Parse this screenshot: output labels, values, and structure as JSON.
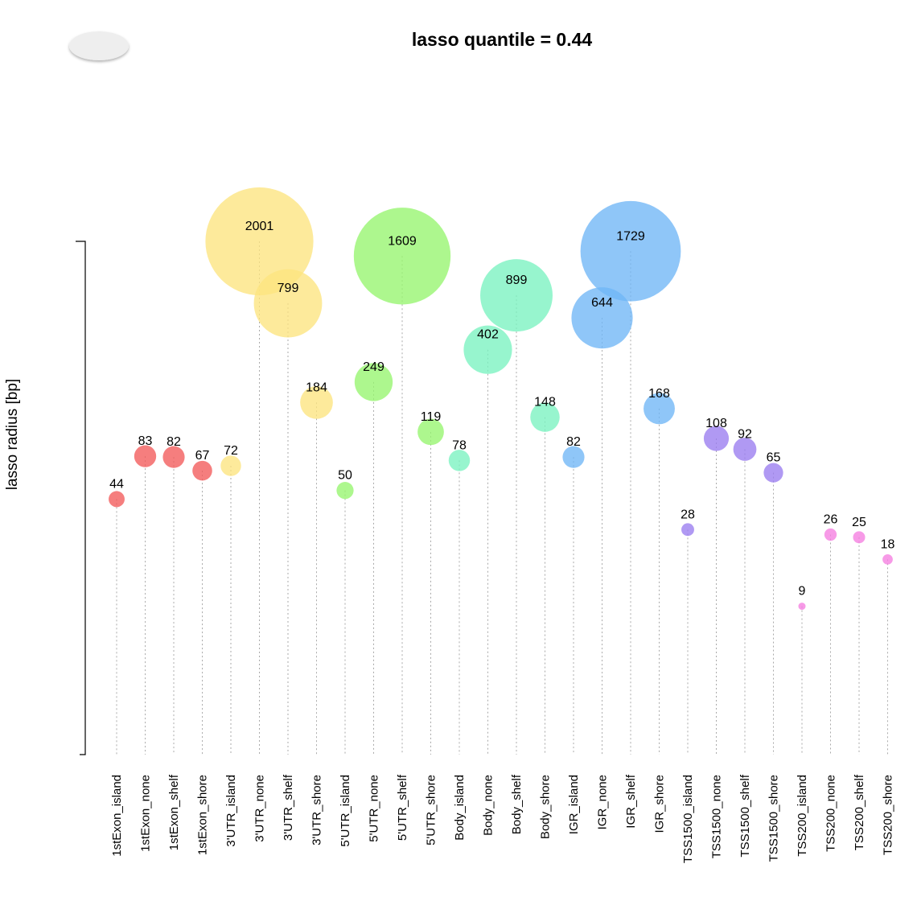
{
  "chart_data": {
    "type": "scatter",
    "title": "lasso quantile = 0.44",
    "ylabel": "lasso radius [bp]",
    "categories": [
      "1stExon_island",
      "1stExon_none",
      "1stExon_shelf",
      "1stExon_shore",
      "3'UTR_island",
      "3'UTR_none",
      "3'UTR_shelf",
      "3'UTR_shore",
      "5'UTR_island",
      "5'UTR_none",
      "5'UTR_shelf",
      "5'UTR_shore",
      "Body_island",
      "Body_none",
      "Body_shelf",
      "Body_shore",
      "IGR_island",
      "IGR_none",
      "IGR_shelf",
      "IGR_shore",
      "TSS1500_island",
      "TSS1500_none",
      "TSS1500_shelf",
      "TSS1500_shore",
      "TSS200_island",
      "TSS200_none",
      "TSS200_shelf",
      "TSS200_shore"
    ],
    "values": [
      44,
      83,
      82,
      67,
      72,
      2001,
      799,
      184,
      50,
      249,
      1609,
      119,
      78,
      402,
      899,
      148,
      82,
      644,
      1729,
      168,
      28,
      108,
      92,
      65,
      9,
      26,
      25,
      18
    ],
    "groups": [
      "1stExon",
      "1stExon",
      "1stExon",
      "1stExon",
      "3'UTR",
      "3'UTR",
      "3'UTR",
      "3'UTR",
      "5'UTR",
      "5'UTR",
      "5'UTR",
      "5'UTR",
      "Body",
      "Body",
      "Body",
      "Body",
      "IGR",
      "IGR",
      "IGR",
      "IGR",
      "TSS1500",
      "TSS1500",
      "TSS1500",
      "TSS1500",
      "TSS200",
      "TSS200",
      "TSS200",
      "TSS200"
    ],
    "group_colors": {
      "1stExon": "#f25a5a",
      "3'UTR": "#fde47f",
      "5'UTR": "#96f56e",
      "Body": "#7af2c0",
      "IGR": "#6fb6f6",
      "TSS1500": "#9a7cf0",
      "TSS200": "#f57ee0"
    },
    "marker_size_encodes": "value",
    "y_scale": "log",
    "ylim": [
      1,
      2001
    ],
    "grid": false,
    "legend": "none",
    "control_color": "#eeeeee"
  }
}
